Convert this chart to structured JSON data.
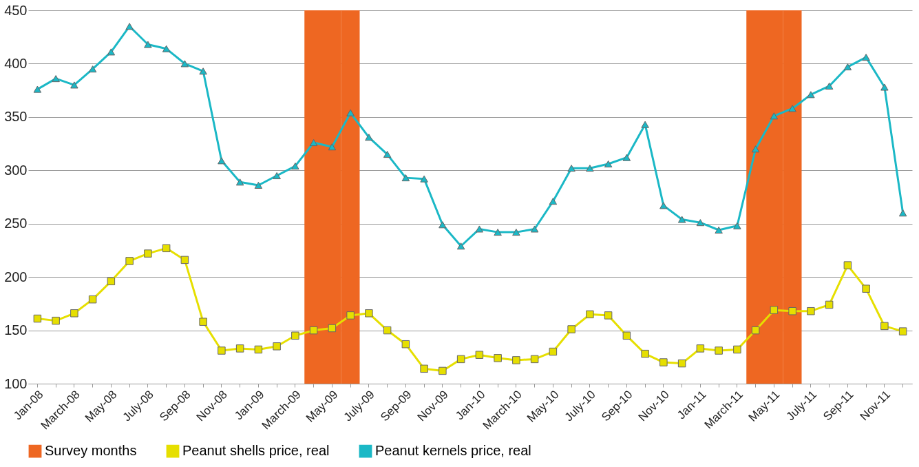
{
  "chart_data": {
    "type": "line",
    "categories": [
      "Jan-08",
      null,
      "March-08",
      null,
      "May-08",
      null,
      "July-08",
      null,
      "Sep-08",
      null,
      "Nov-08",
      null,
      "Jan-09",
      null,
      "March-09",
      null,
      "May-09",
      null,
      "July-09",
      null,
      "Sep-09",
      null,
      "Nov-09",
      null,
      "Jan-10",
      null,
      "March-10",
      null,
      "May-10",
      null,
      "July-10",
      null,
      "Sep-10",
      null,
      "Nov-10",
      null,
      "Jan-11",
      null,
      "March-11",
      null,
      "May-11",
      null,
      "July-11",
      null,
      "Sep-11",
      null,
      "Nov-11",
      null
    ],
    "series": [
      {
        "name": "Survey months",
        "type": "bar",
        "color": "#ee6722",
        "values": [
          null,
          null,
          null,
          null,
          null,
          null,
          null,
          null,
          null,
          null,
          null,
          null,
          null,
          null,
          null,
          450,
          450,
          450,
          null,
          null,
          null,
          null,
          null,
          null,
          null,
          null,
          null,
          null,
          null,
          null,
          null,
          null,
          null,
          null,
          null,
          null,
          null,
          null,
          null,
          450,
          450,
          450,
          null,
          null,
          null,
          null,
          null,
          null
        ]
      },
      {
        "name": "Peanut shells price, real",
        "marker": "square",
        "color": "#e6df00",
        "values": [
          161,
          159,
          166,
          179,
          196,
          215,
          222,
          227,
          216,
          158,
          131,
          133,
          132,
          135,
          145,
          150,
          152,
          164,
          166,
          150,
          137,
          114,
          112,
          123,
          127,
          124,
          122,
          123,
          130,
          151,
          165,
          164,
          145,
          128,
          120,
          119,
          133,
          131,
          132,
          150,
          169,
          168,
          168,
          174,
          211,
          189,
          154,
          149
        ]
      },
      {
        "name": "Peanut kernels price, real",
        "marker": "triangle",
        "color": "#1bb8c6",
        "values": [
          376,
          386,
          380,
          395,
          411,
          435,
          418,
          414,
          400,
          393,
          309,
          289,
          286,
          295,
          304,
          326,
          322,
          354,
          331,
          315,
          293,
          292,
          249,
          229,
          245,
          242,
          242,
          245,
          271,
          302,
          302,
          306,
          312,
          343,
          267,
          254,
          251,
          244,
          248,
          320,
          351,
          358,
          371,
          379,
          397,
          406,
          378,
          260
        ]
      }
    ],
    "ylim": [
      100,
      450
    ],
    "yticks": [
      100,
      150,
      200,
      250,
      300,
      350,
      400,
      450
    ],
    "grid": "y",
    "legend": "bottom"
  }
}
